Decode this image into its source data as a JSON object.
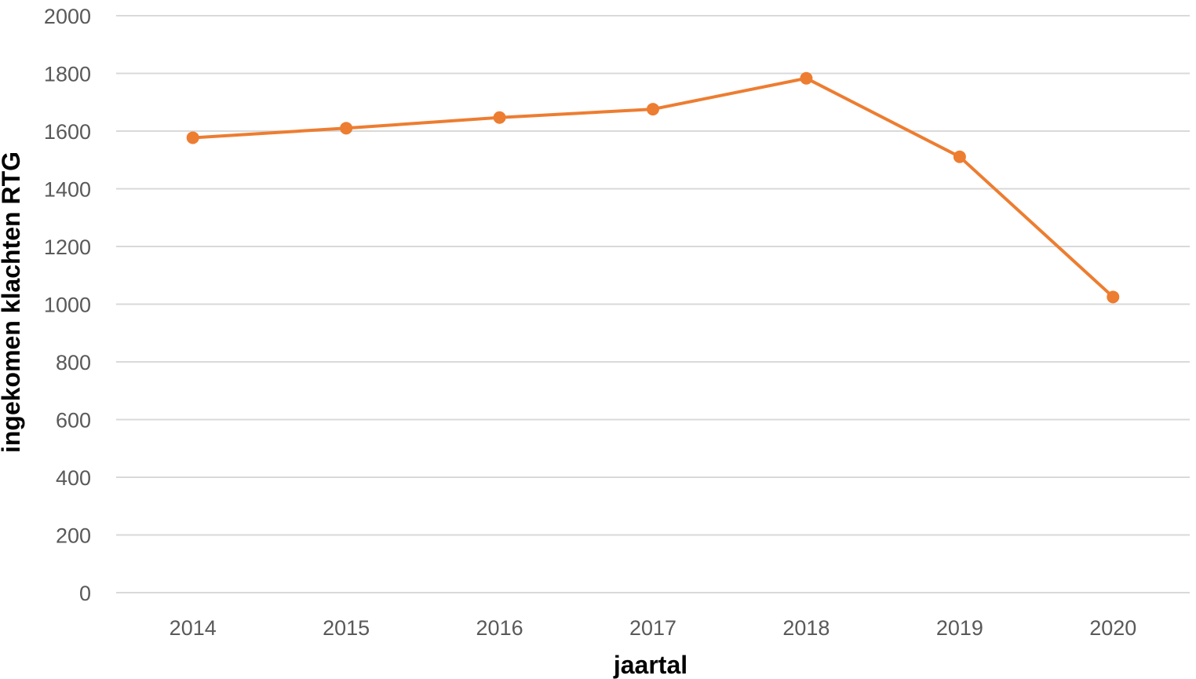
{
  "chart_data": {
    "type": "line",
    "title": "",
    "xlabel": "jaartal",
    "ylabel": "ingekomen klachten RTG",
    "categories": [
      "2014",
      "2015",
      "2016",
      "2017",
      "2018",
      "2019",
      "2020"
    ],
    "series": [
      {
        "values": [
          1577,
          1610,
          1647,
          1676,
          1783,
          1511,
          1025
        ],
        "color": "#ED7D31"
      }
    ],
    "ylim": [
      0,
      2000
    ],
    "yticks": [
      0,
      200,
      400,
      600,
      800,
      1000,
      1200,
      1400,
      1600,
      1800,
      2000
    ],
    "grid": true,
    "legend": "none",
    "colors": {
      "line": "#ED7D31",
      "grid": "#D9D9D9",
      "tick_text": "#595959",
      "axis_title": "#000000"
    }
  }
}
